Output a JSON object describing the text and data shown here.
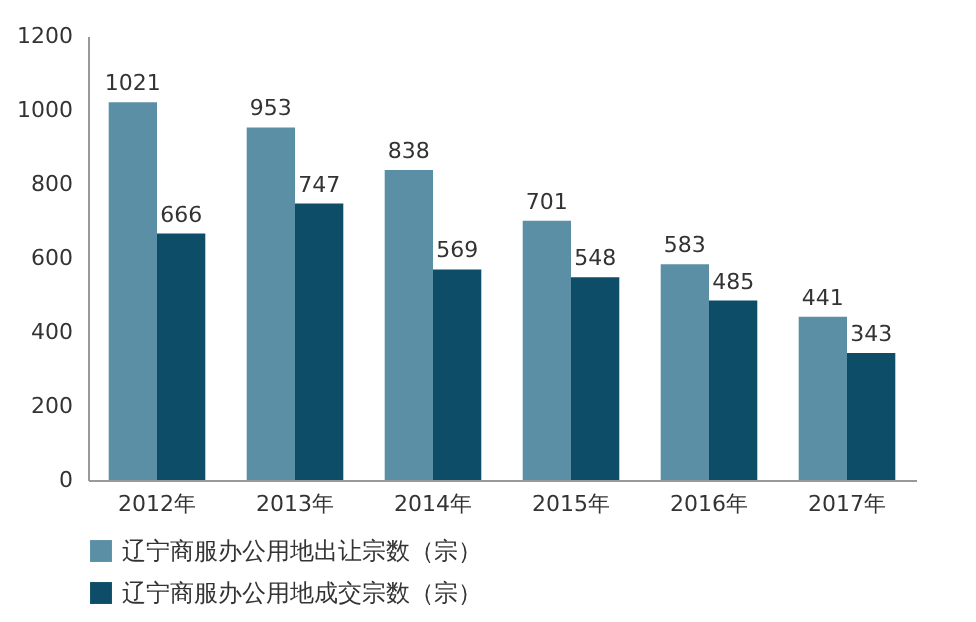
{
  "chart_data": {
    "type": "bar",
    "categories": [
      "2012年",
      "2013年",
      "2014年",
      "2015年",
      "2016年",
      "2017年"
    ],
    "series": [
      {
        "name": "辽宁商服办公用地出让宗数（宗）",
        "color": "#5b8fa6",
        "values": [
          1021,
          953,
          838,
          701,
          583,
          441
        ]
      },
      {
        "name": "辽宁商服办公用地成交宗数（宗）",
        "color": "#0d4d68",
        "values": [
          666,
          747,
          569,
          548,
          485,
          343
        ]
      }
    ],
    "ylim": [
      0,
      1200
    ],
    "yticks": [
      0,
      200,
      400,
      600,
      800,
      1000,
      1200
    ],
    "data_labels": true,
    "legend": "bottom"
  }
}
